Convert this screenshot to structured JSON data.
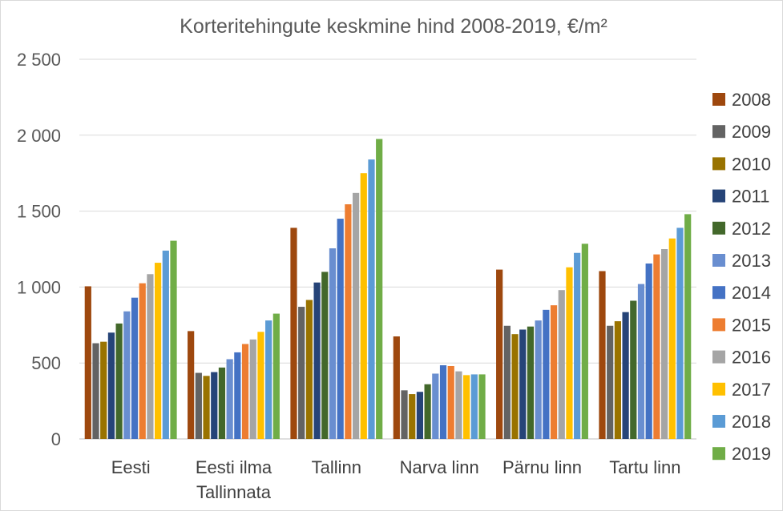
{
  "chart_data": {
    "type": "bar",
    "title": "Korteritehingute keskmine hind 2008-2019, €/m²",
    "xlabel": "",
    "ylabel": "",
    "ylim": [
      0,
      2500
    ],
    "yticks": [
      0,
      500,
      1000,
      1500,
      2000,
      2500
    ],
    "ytick_labels": [
      "0",
      "500",
      "1 000",
      "1 500",
      "2 000",
      "2 500"
    ],
    "grid": true,
    "legend_position": "right",
    "categories": [
      [
        "Eesti"
      ],
      [
        "Eesti ilma",
        "Tallinnata"
      ],
      [
        "Tallinn"
      ],
      [
        "Narva linn"
      ],
      [
        "Pärnu linn"
      ],
      [
        "Tartu linn"
      ]
    ],
    "series": [
      {
        "name": "2008",
        "color": "#9e480e",
        "values": [
          1005,
          710,
          1390,
          675,
          1115,
          1105
        ]
      },
      {
        "name": "2009",
        "color": "#636363",
        "values": [
          630,
          435,
          870,
          320,
          745,
          745
        ]
      },
      {
        "name": "2010",
        "color": "#997300",
        "values": [
          640,
          415,
          915,
          295,
          690,
          775
        ]
      },
      {
        "name": "2011",
        "color": "#264478",
        "values": [
          700,
          440,
          1030,
          310,
          720,
          835
        ]
      },
      {
        "name": "2012",
        "color": "#43682b",
        "values": [
          760,
          470,
          1100,
          360,
          740,
          910
        ]
      },
      {
        "name": "2013",
        "color": "#698ed0",
        "values": [
          840,
          525,
          1255,
          430,
          780,
          1020
        ]
      },
      {
        "name": "2014",
        "color": "#4472c4",
        "values": [
          930,
          570,
          1450,
          485,
          850,
          1155
        ]
      },
      {
        "name": "2015",
        "color": "#ed7d31",
        "values": [
          1025,
          625,
          1545,
          480,
          880,
          1215
        ]
      },
      {
        "name": "2016",
        "color": "#a5a5a5",
        "values": [
          1085,
          655,
          1620,
          445,
          980,
          1250
        ]
      },
      {
        "name": "2017",
        "color": "#ffc000",
        "values": [
          1160,
          705,
          1750,
          420,
          1130,
          1320
        ]
      },
      {
        "name": "2018",
        "color": "#5b9bd5",
        "values": [
          1240,
          780,
          1840,
          425,
          1225,
          1390
        ]
      },
      {
        "name": "2019",
        "color": "#70ad47",
        "values": [
          1305,
          825,
          1975,
          425,
          1285,
          1480
        ]
      }
    ]
  }
}
